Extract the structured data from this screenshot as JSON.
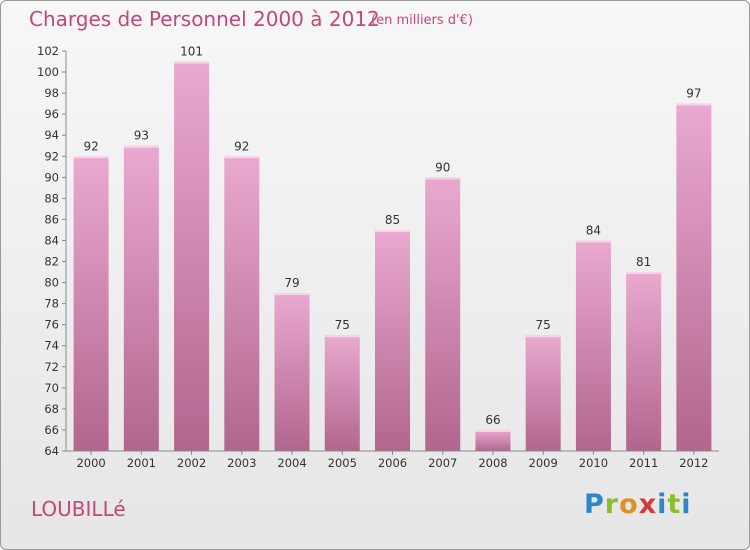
{
  "header": {
    "title": "Charges de Personnel 2000 à 2012",
    "subtitle": "(en milliers d'€)"
  },
  "commune": "LOUBILLé",
  "logo": {
    "letters": [
      "P",
      "r",
      "o",
      "x",
      "i",
      "t",
      "i"
    ]
  },
  "colors": {
    "title": "#c2477a",
    "bar_top": "#eaa9cf",
    "bar_bottom": "#b1668d",
    "axis": "#8a8a8a"
  },
  "chart_data": {
    "type": "bar",
    "title": "Charges de Personnel 2000 à 2012",
    "subtitle": "(en milliers d'€)",
    "categories": [
      "2000",
      "2001",
      "2002",
      "2003",
      "2004",
      "2005",
      "2006",
      "2007",
      "2008",
      "2009",
      "2010",
      "2011",
      "2012"
    ],
    "values": [
      92,
      93,
      101,
      92,
      79,
      75,
      85,
      90,
      66,
      75,
      84,
      81,
      97
    ],
    "ylim": [
      64,
      102
    ],
    "yticks": [
      64,
      66,
      68,
      70,
      72,
      74,
      76,
      78,
      80,
      82,
      84,
      86,
      88,
      90,
      92,
      94,
      96,
      98,
      100,
      102
    ],
    "grid": false,
    "data_labels": true
  }
}
